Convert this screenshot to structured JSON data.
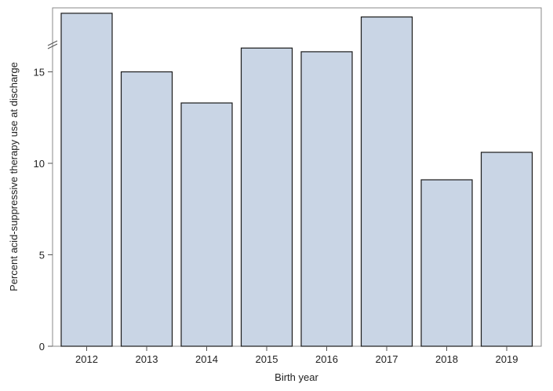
{
  "chart_data": {
    "type": "bar",
    "title": "",
    "xlabel": "Birth year",
    "ylabel": "Percent acid-suppressive therapy use at discharge",
    "categories": [
      "2012",
      "2013",
      "2014",
      "2015",
      "2016",
      "2017",
      "2018",
      "2019"
    ],
    "values": [
      18.2,
      15.0,
      13.3,
      16.3,
      16.1,
      18.0,
      9.1,
      10.6
    ],
    "y_ticks": [
      0,
      5,
      10,
      15
    ],
    "ylim": [
      0,
      18.5
    ],
    "axis_break": true,
    "grid": false,
    "legend": "none",
    "colors": {
      "bar_fill": "#c9d5e5",
      "bar_stroke": "#1a1a1a",
      "frame": "#8a8a8a"
    }
  }
}
